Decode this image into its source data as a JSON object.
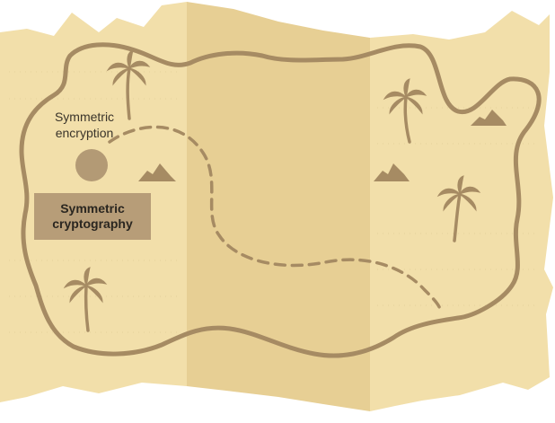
{
  "map": {
    "title": "Symmetric\ncryptography",
    "marker_label": "Symmetric\nencryption"
  },
  "icons": {
    "palm_trees": "palm-tree-icon",
    "mountains": "mountain-icon"
  },
  "colors": {
    "paper": "#f2dfaa",
    "paper_fold": "#e7cf94",
    "ink": "#a68b63",
    "title_box": "#b79d78",
    "marker": "#b39a75",
    "text": "#3a342a"
  }
}
